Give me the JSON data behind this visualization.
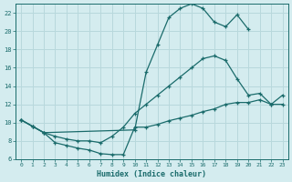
{
  "xlabel": "Humidex (Indice chaleur)",
  "bg_color": "#d4ecef",
  "grid_color": "#b8d8dc",
  "line_color": "#1a6b6b",
  "xlim": [
    -0.5,
    23.5
  ],
  "ylim": [
    6,
    23
  ],
  "xticks": [
    0,
    1,
    2,
    3,
    4,
    5,
    6,
    7,
    8,
    9,
    10,
    11,
    12,
    13,
    14,
    15,
    16,
    17,
    18,
    19,
    20,
    21,
    22,
    23
  ],
  "yticks": [
    6,
    8,
    10,
    12,
    14,
    16,
    18,
    20,
    22
  ],
  "curve_top_x": [
    0,
    1,
    2,
    10,
    11,
    12,
    13,
    14,
    15,
    16,
    17,
    18,
    19,
    20
  ],
  "curve_top_y": [
    10.3,
    9.6,
    8.9,
    9.2,
    15.5,
    18.5,
    21.5,
    22.5,
    23.0,
    22.5,
    21.0,
    20.5,
    21.8,
    20.2
  ],
  "curve_mid_x": [
    0,
    1,
    2,
    3,
    4,
    5,
    6,
    7,
    8,
    9,
    10,
    11,
    12,
    13,
    14,
    15,
    16,
    17,
    18,
    19,
    20,
    21,
    22,
    23
  ],
  "curve_mid_y": [
    10.3,
    9.6,
    8.9,
    8.5,
    8.2,
    8.0,
    8.0,
    7.8,
    8.5,
    9.5,
    11.0,
    12.0,
    13.0,
    14.0,
    15.0,
    16.0,
    17.0,
    17.3,
    16.8,
    14.8,
    13.0,
    13.2,
    12.0,
    13.0
  ],
  "curve_bot_x": [
    0,
    1,
    2,
    3,
    4,
    5,
    6,
    7,
    8,
    9,
    10,
    11,
    12,
    13,
    14,
    15,
    16,
    17,
    18,
    19,
    20,
    21,
    22,
    23
  ],
  "curve_bot_y": [
    10.3,
    9.6,
    8.9,
    7.8,
    7.5,
    7.2,
    7.0,
    6.6,
    6.5,
    6.5,
    9.5,
    9.5,
    9.8,
    10.2,
    10.5,
    10.8,
    11.2,
    11.5,
    12.0,
    12.2,
    12.2,
    12.5,
    12.0,
    12.0
  ]
}
